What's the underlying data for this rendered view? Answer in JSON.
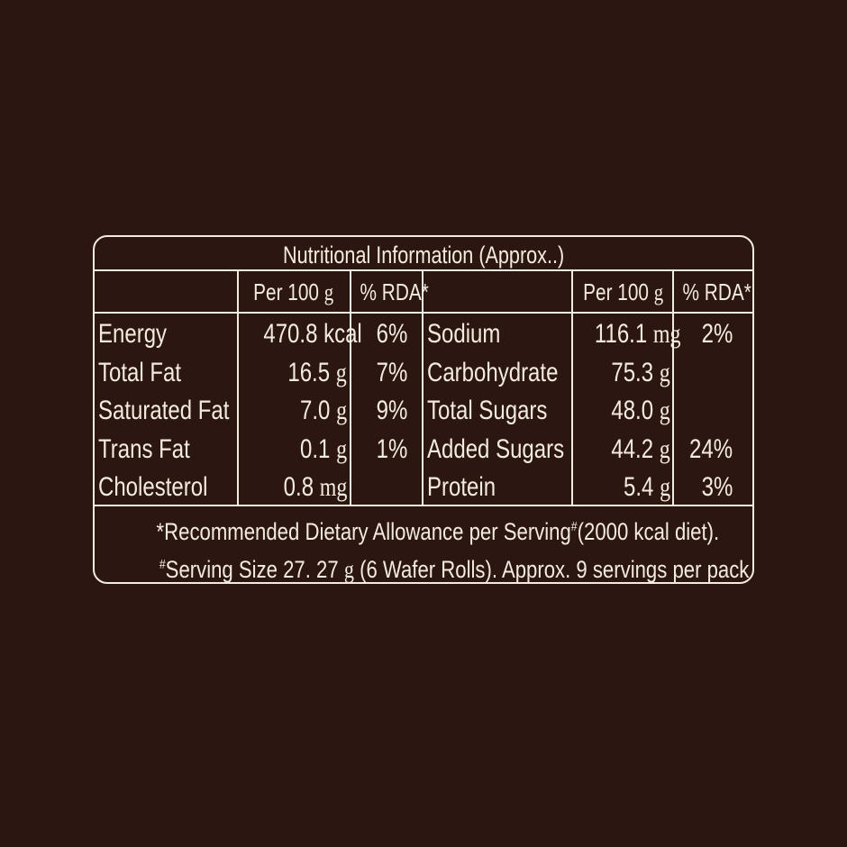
{
  "title": "Nutritional Information (Approx..)",
  "headers": {
    "per100": "Per 100",
    "per100_unit": "g",
    "rda": "% RDA*"
  },
  "left_rows": [
    {
      "name": "Energy",
      "value": "470.8 kcal",
      "unit": "",
      "rda": "6%"
    },
    {
      "name": "Total Fat",
      "value": "16.5",
      "unit": "g",
      "rda": "7%"
    },
    {
      "name": "Saturated Fat",
      "value": "7.0",
      "unit": "g",
      "rda": "9%"
    },
    {
      "name": "Trans Fat",
      "value": "0.1",
      "unit": "g",
      "rda": "1%"
    },
    {
      "name": "Cholesterol",
      "value": "0.8",
      "unit": "mg",
      "rda": ""
    }
  ],
  "right_rows": [
    {
      "name": "Sodium",
      "value": "116.1",
      "unit": "mg",
      "rda": "2%"
    },
    {
      "name": "Carbohydrate",
      "value": "75.3",
      "unit": "g",
      "rda": ""
    },
    {
      "name": "Total Sugars",
      "value": "48.0",
      "unit": "g",
      "rda": ""
    },
    {
      "name": "Added Sugars",
      "value": "44.2",
      "unit": "g",
      "rda": "24%"
    },
    {
      "name": "Protein",
      "value": "5.4",
      "unit": "g",
      "rda": "3%"
    }
  ],
  "footer": {
    "line1_a": "*Recommended Dietary Allowance per Serving",
    "line1_mark": "#",
    "line1_b": "(2000 kcal diet).",
    "line2_mark": "#",
    "line2_a": "Serving Size 27. 27",
    "line2_unit": "g",
    "line2_b": "(6 Wafer Rolls). Approx. 9 servings per pack"
  },
  "colors": {
    "background": "#2b1611",
    "text": "#f4ebdf"
  }
}
